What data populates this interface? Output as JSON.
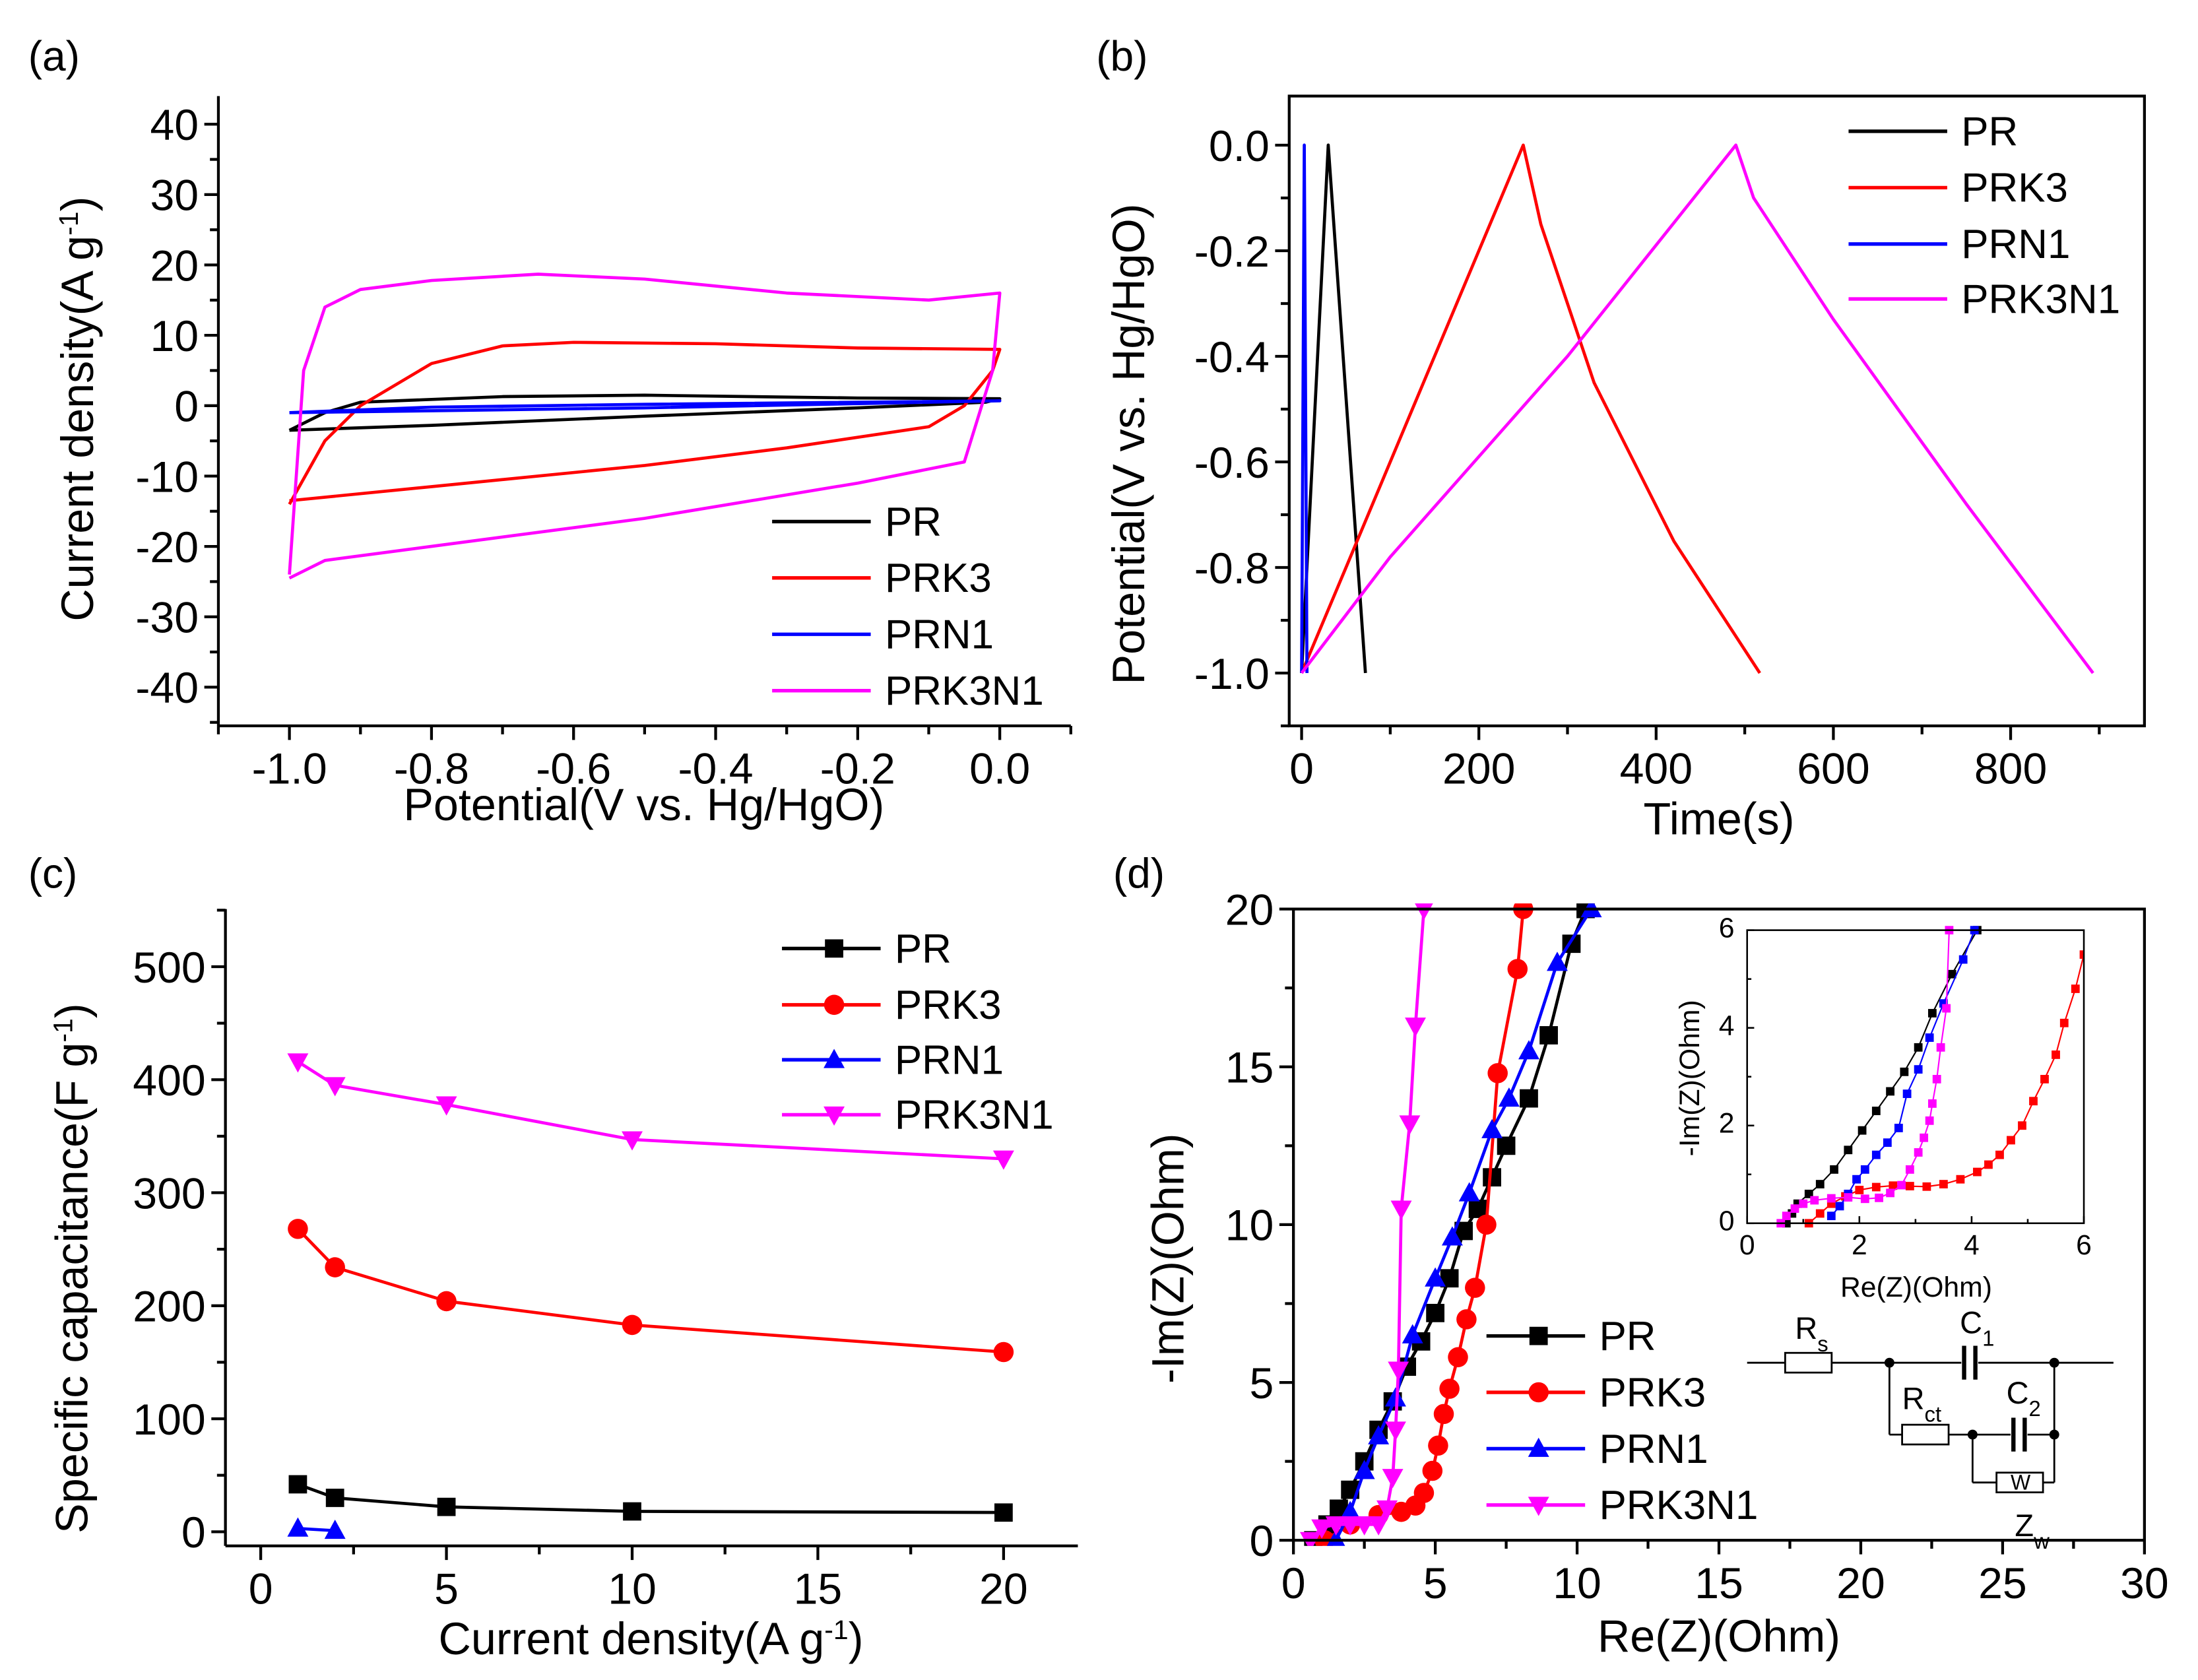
{
  "chart_data": [
    {
      "id": "a",
      "panel_label": "(a)",
      "type": "line",
      "xlabel": [
        [
          "Potential(V vs. Hg/HgO)",
          null
        ]
      ],
      "ylabel": [
        [
          "Current density(A g",
          null
        ],
        [
          "-1",
          "sup"
        ],
        [
          ")",
          null
        ]
      ],
      "xlim": [
        -1.1,
        0.1
      ],
      "ylim": [
        -45.5,
        44
      ],
      "xticks": {
        "values": [
          -1.0,
          -0.8,
          -0.6,
          -0.4,
          -0.2,
          0.0
        ],
        "labels": [
          "-1.0",
          "-0.8",
          "-0.6",
          "-0.4",
          "-0.2",
          "0.0"
        ],
        "minor": 0.1
      },
      "yticks": {
        "values": [
          -40,
          -30,
          -20,
          -10,
          0,
          10,
          20,
          30,
          40
        ],
        "labels": [
          "-40",
          "-30",
          "-20",
          "-10",
          "0",
          "10",
          "20",
          "30",
          "40"
        ],
        "minor": 5
      },
      "legend_position": "bottom-right",
      "series": [
        {
          "name": "PR",
          "color": "#000000",
          "marker": null,
          "x": [
            -1,
            -0.95,
            -0.9,
            -0.7,
            -0.5,
            -0.2,
            0,
            -0.02,
            -0.2,
            -0.5,
            -0.8,
            -1
          ],
          "y": [
            -3.5,
            -1,
            0.5,
            1.3,
            1.5,
            1.1,
            1,
            0.5,
            -0.3,
            -1.5,
            -2.8,
            -3.5
          ]
        },
        {
          "name": "PRK3",
          "color": "#ff0000",
          "marker": null,
          "x": [
            -1,
            -0.95,
            -0.9,
            -0.8,
            -0.7,
            -0.6,
            -0.4,
            -0.2,
            0,
            -0.01,
            -0.05,
            -0.1,
            -0.3,
            -0.5,
            -0.8,
            -1
          ],
          "y": [
            -14,
            -5,
            0,
            6,
            8.5,
            9,
            8.8,
            8.2,
            8,
            5,
            0,
            -3,
            -6,
            -8.5,
            -11.5,
            -13.5
          ]
        },
        {
          "name": "PRN1",
          "color": "#0000ff",
          "marker": null,
          "x": [
            -1,
            -0.8,
            -0.5,
            0,
            -0.5,
            -1
          ],
          "y": [
            -1,
            -0.2,
            0.2,
            0.7,
            -0.3,
            -1
          ]
        },
        {
          "name": "PRK3N1",
          "color": "#ff00ff",
          "marker": null,
          "x": [
            -1,
            -0.98,
            -0.95,
            -0.9,
            -0.8,
            -0.65,
            -0.5,
            -0.3,
            -0.1,
            0,
            -0.01,
            -0.05,
            -0.2,
            -0.5,
            -0.8,
            -0.95,
            -1
          ],
          "y": [
            -24,
            5,
            14,
            16.5,
            17.8,
            18.7,
            18,
            16,
            15,
            16,
            5,
            -8,
            -11,
            -16,
            -20,
            -22,
            -24.5
          ]
        }
      ]
    },
    {
      "id": "b",
      "panel_label": "(b)",
      "type": "line",
      "xlabel": [
        [
          "Time(s)",
          null
        ]
      ],
      "ylabel": [
        [
          "Potential(V vs. Hg/HgO)",
          null
        ]
      ],
      "xlim": [
        -14,
        951
      ],
      "ylim": [
        -1.1,
        0.093
      ],
      "xticks": {
        "values": [
          0,
          200,
          400,
          600,
          800
        ],
        "labels": [
          "0",
          "200",
          "400",
          "600",
          "800"
        ],
        "minor": 100
      },
      "yticks": {
        "values": [
          -1.0,
          -0.8,
          -0.6,
          -0.4,
          -0.2,
          0.0
        ],
        "labels": [
          "-1.0",
          "-0.8",
          "-0.6",
          "-0.4",
          "-0.2",
          "0.0"
        ],
        "minor": 0.1
      },
      "legend_position": "top-right",
      "series": [
        {
          "name": "PR",
          "color": "#000000",
          "marker": null,
          "x": [
            0,
            30,
            72
          ],
          "y": [
            -1,
            0,
            -1
          ]
        },
        {
          "name": "PRK3",
          "color": "#ff0000",
          "marker": null,
          "x": [
            0,
            50,
            125,
            200,
            250,
            270,
            330,
            420,
            517
          ],
          "y": [
            -1,
            -0.8,
            -0.5,
            -0.2,
            0,
            -0.15,
            -0.45,
            -0.75,
            -1
          ]
        },
        {
          "name": "PRN1",
          "color": "#0000ff",
          "marker": null,
          "x": [
            0,
            3,
            6
          ],
          "y": [
            -1,
            0,
            -1
          ]
        },
        {
          "name": "PRK3N1",
          "color": "#ff00ff",
          "marker": null,
          "x": [
            0,
            100,
            300,
            490,
            510,
            600,
            750,
            893
          ],
          "y": [
            -1,
            -0.78,
            -0.4,
            0,
            -0.1,
            -0.33,
            -0.68,
            -1
          ]
        }
      ]
    },
    {
      "id": "c",
      "panel_label": "(c)",
      "type": "line",
      "xlabel": [
        [
          "Current density(A g",
          null
        ],
        [
          "-1",
          "sup"
        ],
        [
          ")",
          null
        ]
      ],
      "ylabel": [
        [
          "Specific capacitance(F g",
          null
        ],
        [
          "-1",
          "sup"
        ],
        [
          ")",
          null
        ]
      ],
      "xlim": [
        -0.95,
        22
      ],
      "ylim": [
        -12.5,
        551
      ],
      "xticks": {
        "values": [
          0,
          5,
          10,
          15,
          20
        ],
        "labels": [
          "0",
          "5",
          "10",
          "15",
          "20"
        ],
        "minor": 2.5
      },
      "yticks": {
        "values": [
          0,
          100,
          200,
          300,
          400,
          500
        ],
        "labels": [
          "0",
          "100",
          "200",
          "300",
          "400",
          "500"
        ],
        "minor": 50
      },
      "legend_position": "top-right",
      "series": [
        {
          "name": "PR",
          "color": "#000000",
          "marker": "square",
          "x": [
            1,
            2,
            5,
            10,
            20
          ],
          "y": [
            42,
            30,
            22,
            18,
            17
          ]
        },
        {
          "name": "PRK3",
          "color": "#ff0000",
          "marker": "circle",
          "x": [
            1,
            2,
            5,
            10,
            20
          ],
          "y": [
            268,
            234,
            204,
            183,
            159
          ]
        },
        {
          "name": "PRN1",
          "color": "#0000ff",
          "marker": "triangle-up",
          "x": [
            1,
            2
          ],
          "y": [
            3,
            1
          ]
        },
        {
          "name": "PRK3N1",
          "color": "#ff00ff",
          "marker": "triangle-down",
          "x": [
            1,
            2,
            5,
            10,
            20
          ],
          "y": [
            416,
            395,
            378,
            347,
            330
          ]
        }
      ]
    },
    {
      "id": "d",
      "panel_label": "(d)",
      "type": "scatter",
      "xlabel": [
        [
          "Re(Z)(Ohm)",
          null
        ]
      ],
      "ylabel": [
        [
          "-Im(Z)(Ohm)",
          null
        ]
      ],
      "xlim": [
        0,
        30
      ],
      "ylim": [
        0,
        20
      ],
      "xticks": {
        "values": [
          0,
          5,
          10,
          15,
          20,
          25,
          30
        ],
        "labels": [
          "0",
          "5",
          "10",
          "15",
          "20",
          "25",
          "30"
        ],
        "minor": 2.5
      },
      "yticks": {
        "values": [
          0,
          5,
          10,
          15,
          20
        ],
        "labels": [
          "0",
          "5",
          "10",
          "15",
          "20"
        ],
        "minor": 2.5
      },
      "legend_position": "bottom-center",
      "series": [
        {
          "name": "PR",
          "color": "#000000",
          "marker": "square",
          "x": [
            0.7,
            1.2,
            1.6,
            2,
            2.5,
            3,
            3.5,
            4,
            4.5,
            5,
            5.5,
            6,
            6.5,
            7,
            7.5,
            8.3,
            9,
            9.8,
            10.3
          ],
          "y": [
            0,
            0.5,
            1,
            1.6,
            2.5,
            3.5,
            4.4,
            5.5,
            6.3,
            7.2,
            8.3,
            9.8,
            10.5,
            11.5,
            12.5,
            14,
            16,
            18.9,
            20
          ]
        },
        {
          "name": "PRK3",
          "color": "#ff0000",
          "marker": "circle",
          "x": [
            1.1,
            2,
            3,
            3.8,
            4.3,
            4.6,
            4.9,
            5.1,
            5.3,
            5.5,
            5.8,
            6.1,
            6.4,
            6.8,
            7.2,
            7.9,
            8.1
          ],
          "y": [
            0,
            0.5,
            0.8,
            0.9,
            1.1,
            1.5,
            2.2,
            3.0,
            4.0,
            4.8,
            5.8,
            7.0,
            8.0,
            10.0,
            14.8,
            18.1,
            20
          ]
        },
        {
          "name": "PRN1",
          "color": "#0000ff",
          "marker": "triangle-up",
          "x": [
            1.5,
            2,
            2.5,
            3,
            3.6,
            4.2,
            5,
            5.6,
            6.2,
            7,
            7.6,
            8.3,
            9.3,
            10.5
          ],
          "y": [
            0,
            0.9,
            2.2,
            3.3,
            4.5,
            6.5,
            8.3,
            9.6,
            11,
            13,
            14,
            15.5,
            18.3,
            20
          ]
        },
        {
          "name": "PRK3N1",
          "color": "#ff00ff",
          "marker": "triangle-down",
          "x": [
            0.6,
            1,
            1.5,
            2,
            2.5,
            3,
            3.3,
            3.5,
            3.6,
            3.7,
            3.8,
            4.1,
            4.3,
            4.6
          ],
          "y": [
            0,
            0.4,
            0.5,
            0.5,
            0.5,
            0.5,
            1.0,
            2.0,
            3.5,
            5.4,
            10.5,
            13.2,
            16.3,
            20
          ]
        }
      ]
    },
    {
      "id": "d-inset",
      "type": "scatter",
      "xlabel": [
        [
          "Re(Z)(Ohm)",
          null
        ]
      ],
      "ylabel": [
        [
          "-Im(Z)(Ohm)",
          null
        ]
      ],
      "xlim": [
        0,
        6
      ],
      "ylim": [
        0,
        6
      ],
      "xticks": {
        "values": [
          0,
          2,
          4,
          6
        ],
        "labels": [
          "0",
          "2",
          "4",
          "6"
        ],
        "minor": 1
      },
      "yticks": {
        "values": [
          0,
          2,
          4,
          6
        ],
        "labels": [
          "0",
          "2",
          "4",
          "6"
        ],
        "minor": 1
      },
      "series": [
        {
          "name": "PR",
          "color": "#000000",
          "marker": "square",
          "x": [
            0.7,
            0.8,
            0.9,
            1.1,
            1.3,
            1.55,
            1.8,
            2.05,
            2.3,
            2.55,
            2.8,
            3.05,
            3.3,
            3.65,
            4.1
          ],
          "y": [
            0,
            0.2,
            0.4,
            0.6,
            0.8,
            1.1,
            1.5,
            1.9,
            2.3,
            2.7,
            3.1,
            3.6,
            4.3,
            5.1,
            6
          ]
        },
        {
          "name": "PRK3",
          "color": "#ff0000",
          "marker": "square",
          "x": [
            1.1,
            1.3,
            1.5,
            1.75,
            2,
            2.3,
            2.6,
            2.9,
            3.2,
            3.5,
            3.8,
            4.1,
            4.3,
            4.5,
            4.7,
            4.9,
            5.1,
            5.3,
            5.5,
            5.65,
            5.85,
            6
          ],
          "y": [
            0,
            0.2,
            0.4,
            0.55,
            0.68,
            0.74,
            0.77,
            0.76,
            0.75,
            0.8,
            0.9,
            1.05,
            1.2,
            1.4,
            1.7,
            2.0,
            2.5,
            2.95,
            3.45,
            4.1,
            4.8,
            5.5
          ]
        },
        {
          "name": "PRN1",
          "color": "#0000ff",
          "marker": "square",
          "x": [
            1.5,
            1.65,
            1.8,
            1.95,
            2.1,
            2.3,
            2.5,
            2.7,
            2.85,
            3.05,
            3.25,
            3.5,
            3.85,
            4.05
          ],
          "y": [
            0.15,
            0.35,
            0.6,
            0.9,
            1.1,
            1.4,
            1.65,
            1.95,
            2.65,
            3.15,
            3.8,
            4.5,
            5.4,
            6
          ]
        },
        {
          "name": "PRK3N1",
          "color": "#ff00ff",
          "marker": "square",
          "x": [
            0.6,
            0.7,
            0.85,
            1.0,
            1.2,
            1.5,
            1.8,
            2.1,
            2.35,
            2.55,
            2.75,
            2.9,
            3.05,
            3.15,
            3.25,
            3.3,
            3.38,
            3.45,
            3.55,
            3.6
          ],
          "y": [
            0,
            0.15,
            0.3,
            0.4,
            0.47,
            0.51,
            0.53,
            0.5,
            0.52,
            0.62,
            0.78,
            1.1,
            1.45,
            1.75,
            2.1,
            2.45,
            2.95,
            3.6,
            4.4,
            6
          ]
        }
      ]
    }
  ],
  "circuit": {
    "labels": [
      {
        "main": "R",
        "sub": "s"
      },
      {
        "main": "C",
        "sub": "1"
      },
      {
        "main": "R",
        "sub": "ct"
      },
      {
        "main": "C",
        "sub": "2"
      },
      {
        "main": "W",
        "sub": ""
      },
      {
        "main": "Z",
        "sub": "w"
      }
    ]
  }
}
